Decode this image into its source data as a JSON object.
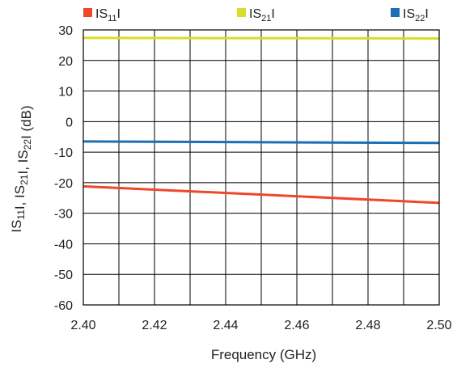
{
  "chart_data": {
    "type": "line",
    "title": "",
    "xlabel": "Frequency (GHz)",
    "ylabel_parts": [
      {
        "t": "IS",
        "sub": false
      },
      {
        "t": "11",
        "sub": true
      },
      {
        "t": "I, IS",
        "sub": false
      },
      {
        "t": "21",
        "sub": true
      },
      {
        "t": "I, IS",
        "sub": false
      },
      {
        "t": "22",
        "sub": true
      },
      {
        "t": "I (dB)",
        "sub": false
      }
    ],
    "xlim": [
      2.4,
      2.5
    ],
    "ylim": [
      -60,
      30
    ],
    "x_ticks": [
      "2.40",
      "2.42",
      "2.44",
      "2.46",
      "2.48",
      "2.50"
    ],
    "x_tick_values": [
      2.4,
      2.42,
      2.44,
      2.46,
      2.48,
      2.5
    ],
    "y_ticks": [
      "30",
      "20",
      "10",
      "0",
      "-10",
      "-20",
      "-30",
      "-40",
      "-50",
      "-60"
    ],
    "y_tick_values": [
      30,
      20,
      10,
      0,
      -10,
      -20,
      -30,
      -40,
      -50,
      -60
    ],
    "x_grid_values": [
      2.4,
      2.41,
      2.42,
      2.43,
      2.44,
      2.45,
      2.46,
      2.47,
      2.48,
      2.49,
      2.5
    ],
    "grid": true,
    "legend_position": "top",
    "series": [
      {
        "name": "IS11I",
        "label_main": "IS",
        "label_sub": "11",
        "label_end": "I",
        "color": "#f0462a",
        "x": [
          2.4,
          2.5
        ],
        "y": [
          -21.2,
          -26.6
        ]
      },
      {
        "name": "IS21I",
        "label_main": "IS",
        "label_sub": "21",
        "label_end": "I",
        "color": "#d8dc2a",
        "x": [
          2.4,
          2.5
        ],
        "y": [
          27.4,
          27.2
        ]
      },
      {
        "name": "IS22I",
        "label_main": "IS",
        "label_sub": "22",
        "label_end": "I",
        "color": "#1a6fb5",
        "x": [
          2.4,
          2.5
        ],
        "y": [
          -6.5,
          -7.0
        ]
      }
    ]
  }
}
